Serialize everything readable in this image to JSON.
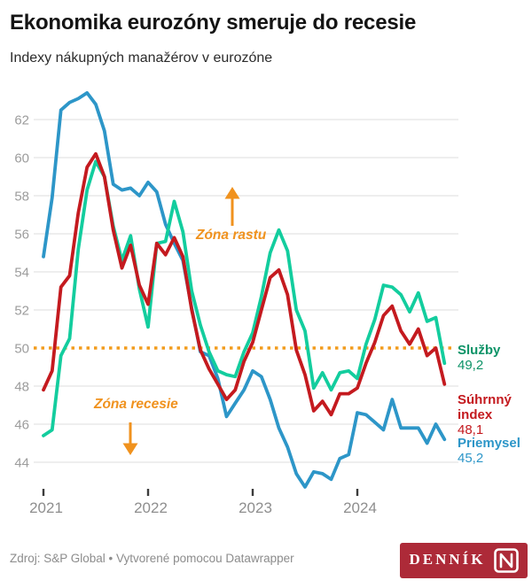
{
  "chart_data": {
    "type": "line",
    "title": "Ekonomika eurozóny smeruje do recesie",
    "subtitle": "Indexy nákupných manažérov v eurozóne",
    "x": {
      "start": "2021-01",
      "end": "2024-11",
      "interval": "monthly",
      "tick_labels": [
        "2021",
        "2022",
        "2023",
        "2024"
      ]
    },
    "ylim": [
      42.5,
      63.8
    ],
    "y_ticks": [
      62,
      60,
      58,
      56,
      54,
      52,
      50,
      48,
      46,
      44
    ],
    "grid": "horizontal",
    "legend_position": "right-edge-labels",
    "reference_line": {
      "value": 50,
      "style": "dotted",
      "color": "#f29c1d"
    },
    "annotations": [
      {
        "text": "Zóna rastu",
        "arrow": "up",
        "color": "#f0921e"
      },
      {
        "text": "Zóna recesie",
        "arrow": "down",
        "color": "#f0921e"
      }
    ],
    "series": [
      {
        "key": "sluzby",
        "name": "Služby",
        "color": "#13cd9e",
        "label_color": "#0d9367",
        "last_value_label": "49,2",
        "values": [
          45.4,
          45.7,
          49.6,
          50.5,
          55.2,
          58.3,
          59.8,
          59.0,
          56.4,
          54.6,
          55.9,
          53.1,
          51.1,
          55.5,
          55.6,
          57.7,
          56.1,
          53.0,
          51.2,
          49.8,
          48.8,
          48.6,
          48.5,
          49.8,
          50.8,
          52.7,
          55.0,
          56.2,
          55.1,
          52.0,
          50.9,
          47.9,
          48.7,
          47.8,
          48.7,
          48.8,
          48.4,
          50.2,
          51.5,
          53.3,
          53.2,
          52.8,
          51.9,
          52.9,
          51.4,
          51.6,
          49.2
        ]
      },
      {
        "key": "suhrnny-index",
        "name": "Súhrnný index",
        "color": "#c41a1f",
        "label_color": "#c41a1f",
        "last_value_label": "48,1",
        "values": [
          47.8,
          48.8,
          53.2,
          53.8,
          57.1,
          59.5,
          60.2,
          59.0,
          56.2,
          54.2,
          55.4,
          53.3,
          52.3,
          55.5,
          54.9,
          55.8,
          54.8,
          52.0,
          49.9,
          48.9,
          48.1,
          47.3,
          47.8,
          49.3,
          50.3,
          52.0,
          53.7,
          54.1,
          52.8,
          49.9,
          48.6,
          46.7,
          47.2,
          46.5,
          47.6,
          47.6,
          47.9,
          49.2,
          50.3,
          51.7,
          52.2,
          50.9,
          50.2,
          51.0,
          49.6,
          50.0,
          48.1
        ]
      },
      {
        "key": "priemysel",
        "name": "Priemysel",
        "color": "#2d96c8",
        "label_color": "#2d96c8",
        "last_value_label": "45,2",
        "values": [
          54.8,
          57.9,
          62.5,
          62.9,
          63.1,
          63.4,
          62.8,
          61.4,
          58.6,
          58.3,
          58.4,
          58.0,
          58.7,
          58.2,
          56.5,
          55.5,
          54.6,
          52.1,
          49.8,
          49.6,
          48.4,
          46.4,
          47.1,
          47.8,
          48.8,
          48.5,
          47.3,
          45.8,
          44.8,
          43.4,
          42.7,
          43.5,
          43.4,
          43.1,
          44.2,
          44.4,
          46.6,
          46.5,
          46.1,
          45.7,
          47.3,
          45.8,
          45.8,
          45.8,
          45.0,
          46.0,
          45.2
        ]
      }
    ]
  },
  "footer": {
    "source": "Zdroj: S&P Global • Vytvorené pomocou Datawrapper",
    "logo_text": "DENNÍK"
  }
}
